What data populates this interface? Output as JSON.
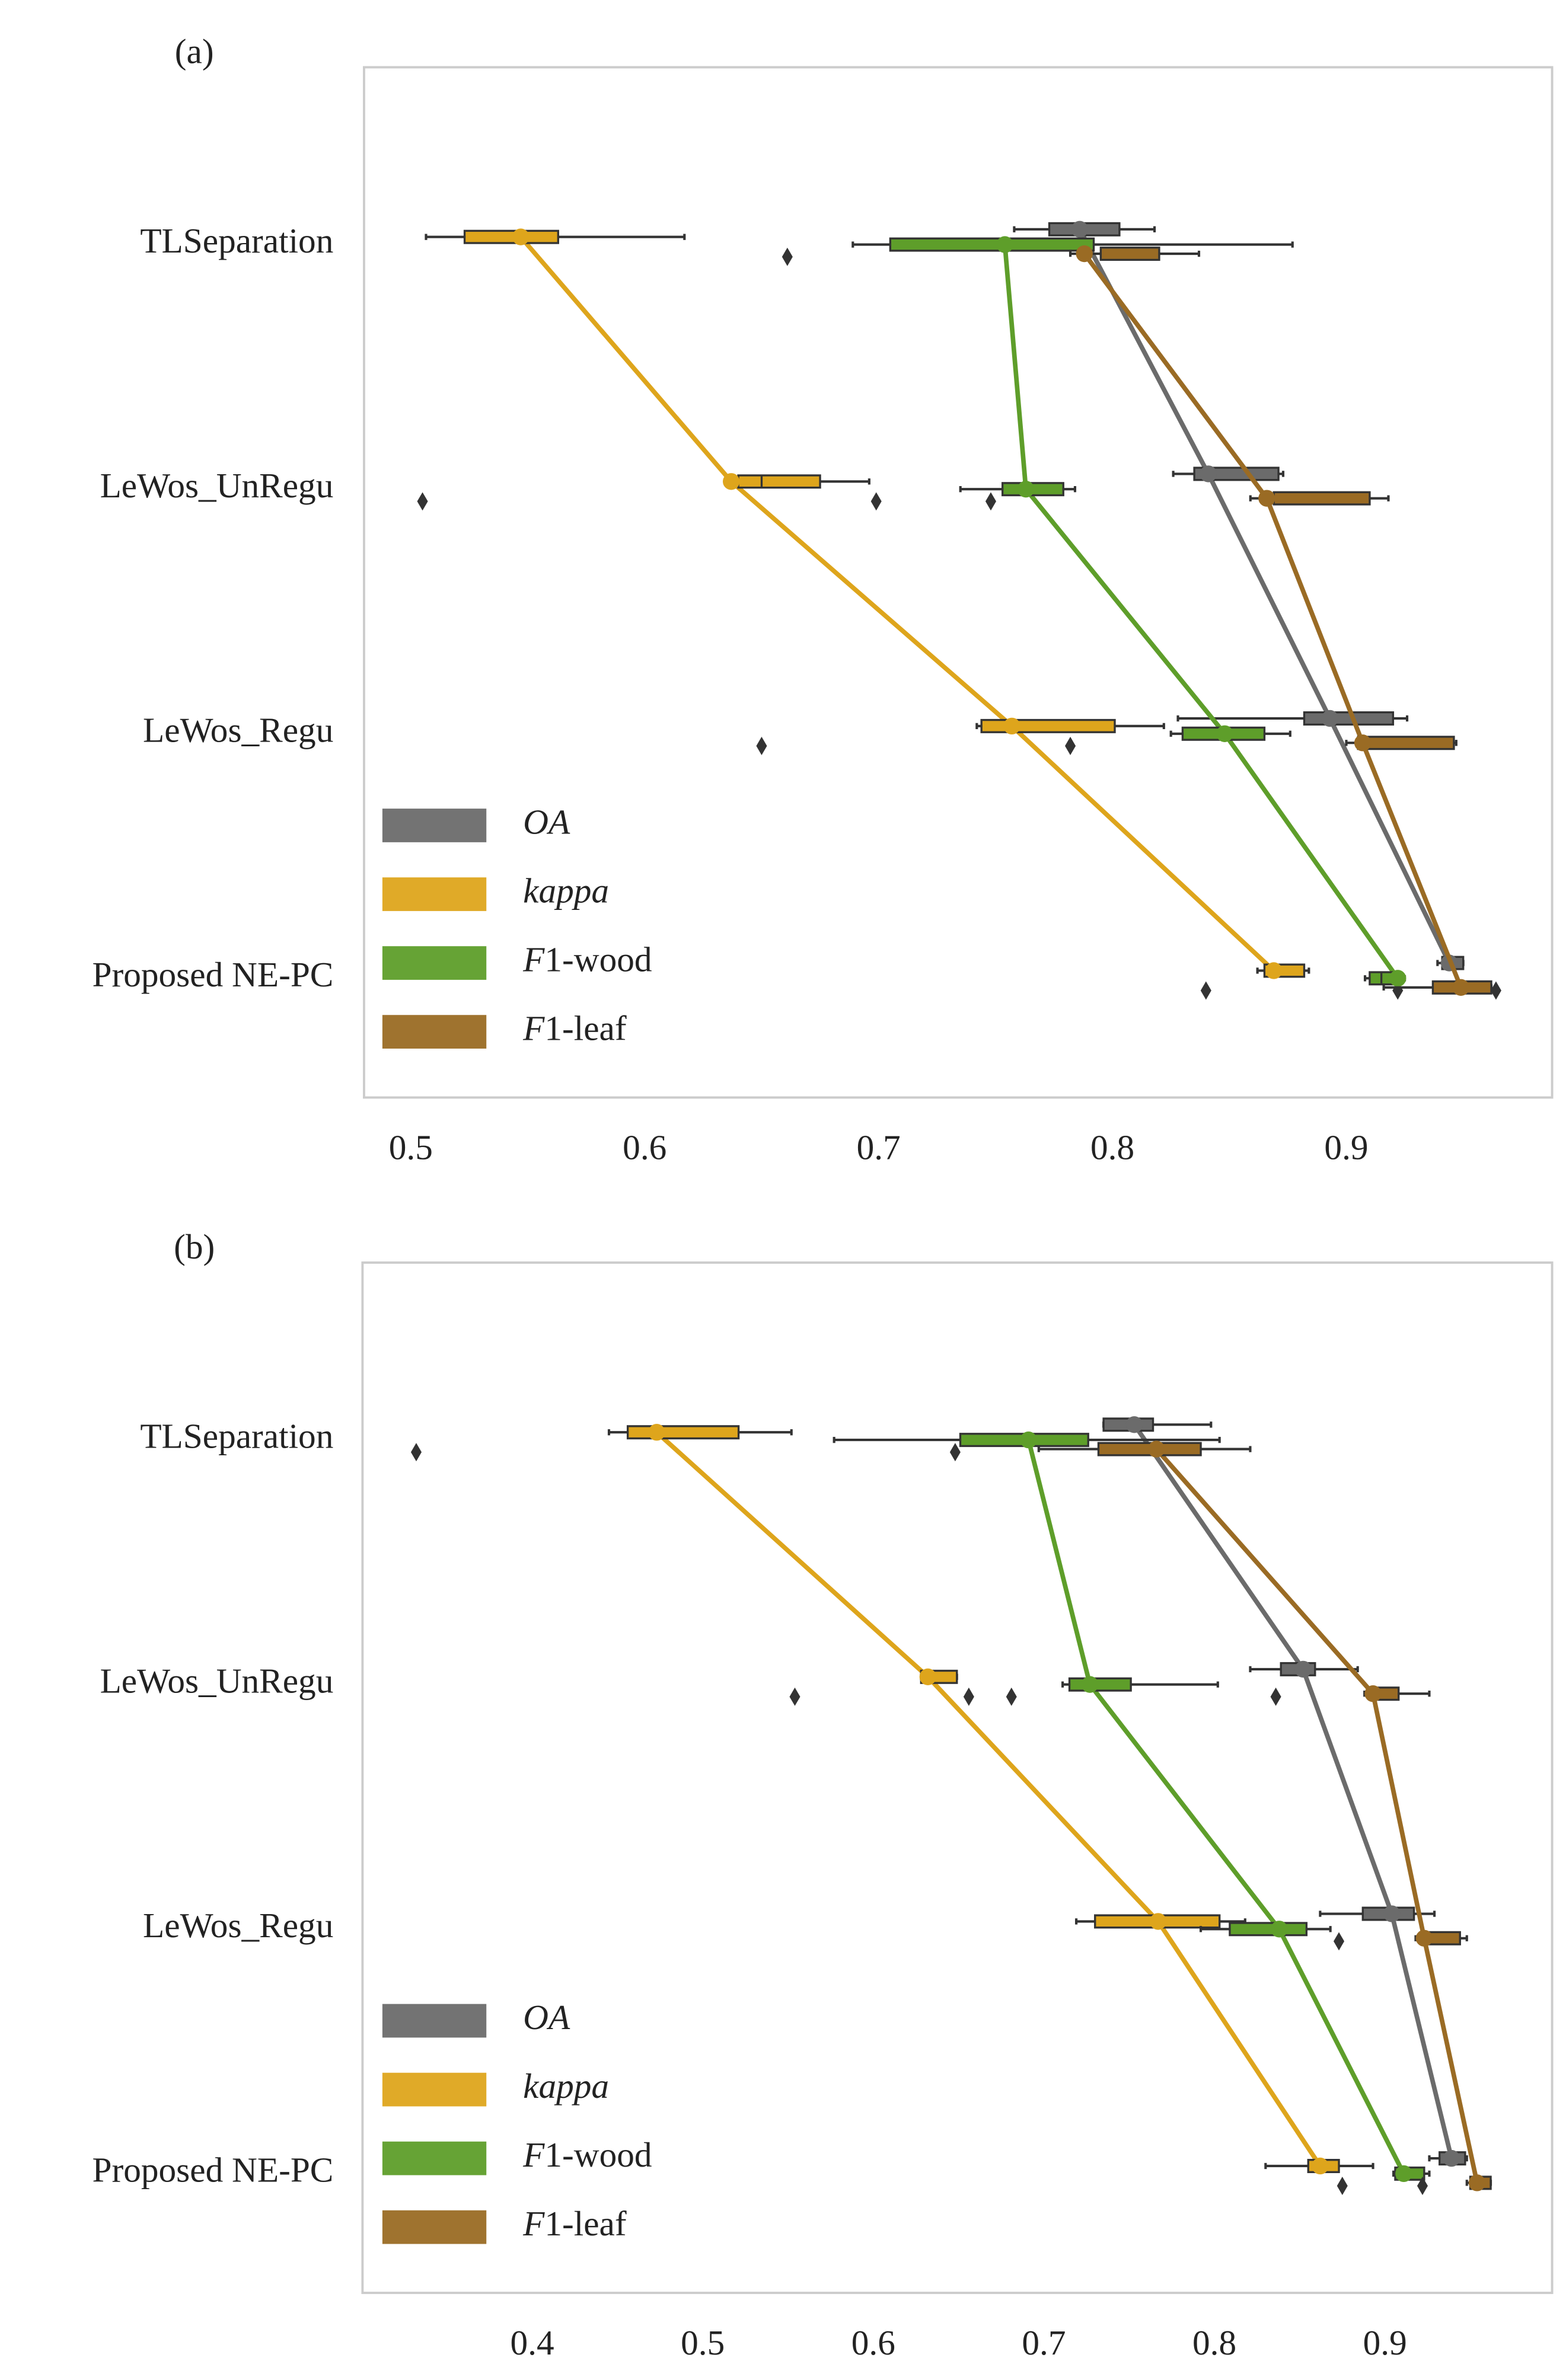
{
  "chart_data": [
    {
      "type": "box",
      "panel_label": "(a)",
      "categories": [
        "TLSeparation",
        "LeWos_UnRegu",
        "LeWos_Regu",
        "Proposed NE-PC"
      ],
      "xlim": [
        0.48,
        0.988
      ],
      "xticks": [
        0.5,
        0.6,
        0.7,
        0.8,
        0.9
      ],
      "legend": "lower left",
      "series": [
        {
          "name": "OA",
          "color": "#6b6b6b",
          "boxes": [
            [
              0.758,
              0.773,
              0.786,
              0.803,
              0.818
            ],
            [
              0.826,
              0.835,
              0.841,
              0.871,
              0.873
            ],
            [
              0.828,
              0.882,
              0.893,
              0.92,
              0.926
            ],
            [
              0.939,
              0.941,
              0.944,
              0.95,
              0.95
            ]
          ],
          "means": [
            0.786,
            0.841,
            0.893,
            0.944
          ],
          "outliers": [
            [],
            [],
            [],
            []
          ]
        },
        {
          "name": "kappa",
          "color": "#dea51c",
          "boxes": [
            [
              0.5065,
              0.523,
              0.547,
              0.563,
              0.617
            ],
            [
              0.637,
              0.64,
              0.65,
              0.675,
              0.696
            ],
            [
              0.742,
              0.744,
              0.757,
              0.801,
              0.822
            ],
            [
              0.862,
              0.865,
              0.869,
              0.882,
              0.884
            ]
          ],
          "means": [
            0.547,
            0.637,
            0.757,
            0.869
          ],
          "outliers": [
            [],
            [
              0.505,
              0.699
            ],
            [
              0.65,
              0.782
            ],
            [
              0.84
            ]
          ]
        },
        {
          "name": "F1-wood",
          "color": "#5e9e2a",
          "boxes": [
            [
              0.689,
              0.705,
              0.754,
              0.792,
              0.877
            ],
            [
              0.735,
              0.753,
              0.763,
              0.779,
              0.784
            ],
            [
              0.825,
              0.83,
              0.848,
              0.865,
              0.876
            ],
            [
              0.908,
              0.91,
              0.915,
              0.923,
              0.925
            ]
          ],
          "means": [
            0.754,
            0.763,
            0.848,
            0.922
          ],
          "outliers": [
            [
              0.661
            ],
            [
              0.748
            ],
            [],
            [
              0.922
            ]
          ]
        },
        {
          "name": "F1-leaf",
          "color": "#9a6b24",
          "boxes": [
            [
              0.782,
              0.795,
              0.788,
              0.82,
              0.837
            ],
            [
              0.859,
              0.869,
              0.866,
              0.91,
              0.918
            ],
            [
              0.9,
              0.905,
              0.907,
              0.946,
              0.947
            ],
            [
              0.916,
              0.937,
              0.949,
              0.962,
              0.962
            ]
          ],
          "means": [
            0.788,
            0.866,
            0.907,
            0.949
          ],
          "outliers": [
            [],
            [],
            [],
            [
              0.964
            ]
          ]
        }
      ]
    },
    {
      "type": "box",
      "panel_label": "(b)",
      "categories": [
        "TLSeparation",
        "LeWos_UnRegu",
        "LeWos_Regu",
        "Proposed NE-PC"
      ],
      "xlim": [
        0.3005,
        0.998
      ],
      "xticks": [
        0.4,
        0.5,
        0.6,
        0.7,
        0.8,
        0.9
      ],
      "legend": "lower left",
      "series": [
        {
          "name": "OA",
          "color": "#6b6b6b",
          "boxes": [
            [
              0.735,
              0.735,
              0.753,
              0.764,
              0.798
            ],
            [
              0.821,
              0.839,
              0.852,
              0.859,
              0.884
            ],
            [
              0.862,
              0.887,
              0.904,
              0.917,
              0.929
            ],
            [
              0.926,
              0.932,
              0.939,
              0.947,
              0.948
            ]
          ],
          "means": [
            0.753,
            0.852,
            0.904,
            0.939
          ],
          "outliers": [
            [],
            [
              0.836
            ],
            [],
            []
          ]
        },
        {
          "name": "kappa",
          "color": "#dea51c",
          "boxes": [
            [
              0.445,
              0.456,
              0.473,
              0.521,
              0.552
            ],
            [
              0.628,
              0.628,
              0.632,
              0.649,
              0.649
            ],
            [
              0.719,
              0.73,
              0.767,
              0.803,
              0.818
            ],
            [
              0.83,
              0.855,
              0.862,
              0.873,
              0.893
            ]
          ],
          "means": [
            0.473,
            0.632,
            0.767,
            0.862
          ],
          "outliers": [
            [
              0.332
            ],
            [
              0.554,
              0.656,
              0.681
            ],
            [],
            [
              0.875
            ]
          ]
        },
        {
          "name": "F1-wood",
          "color": "#5e9e2a",
          "boxes": [
            [
              0.577,
              0.651,
              0.691,
              0.726,
              0.803
            ],
            [
              0.711,
              0.715,
              0.727,
              0.751,
              0.802
            ],
            [
              0.792,
              0.809,
              0.838,
              0.854,
              0.868
            ],
            [
              0.905,
              0.906,
              0.911,
              0.923,
              0.926
            ]
          ],
          "means": [
            0.691,
            0.727,
            0.838,
            0.911
          ],
          "outliers": [
            [
              0.648
            ],
            [],
            [
              0.873
            ],
            [
              0.922
            ]
          ]
        },
        {
          "name": "F1-leaf",
          "color": "#9a6b24",
          "boxes": [
            [
              0.697,
              0.732,
              0.766,
              0.792,
              0.821
            ],
            [
              0.888,
              0.892,
              0.893,
              0.908,
              0.926
            ],
            [
              0.918,
              0.922,
              0.923,
              0.944,
              0.948
            ],
            [
              0.948,
              0.95,
              0.954,
              0.962,
              0.962
            ]
          ],
          "means": [
            0.766,
            0.893,
            0.923,
            0.954
          ],
          "outliers": [
            [],
            [],
            [],
            []
          ]
        }
      ]
    }
  ]
}
